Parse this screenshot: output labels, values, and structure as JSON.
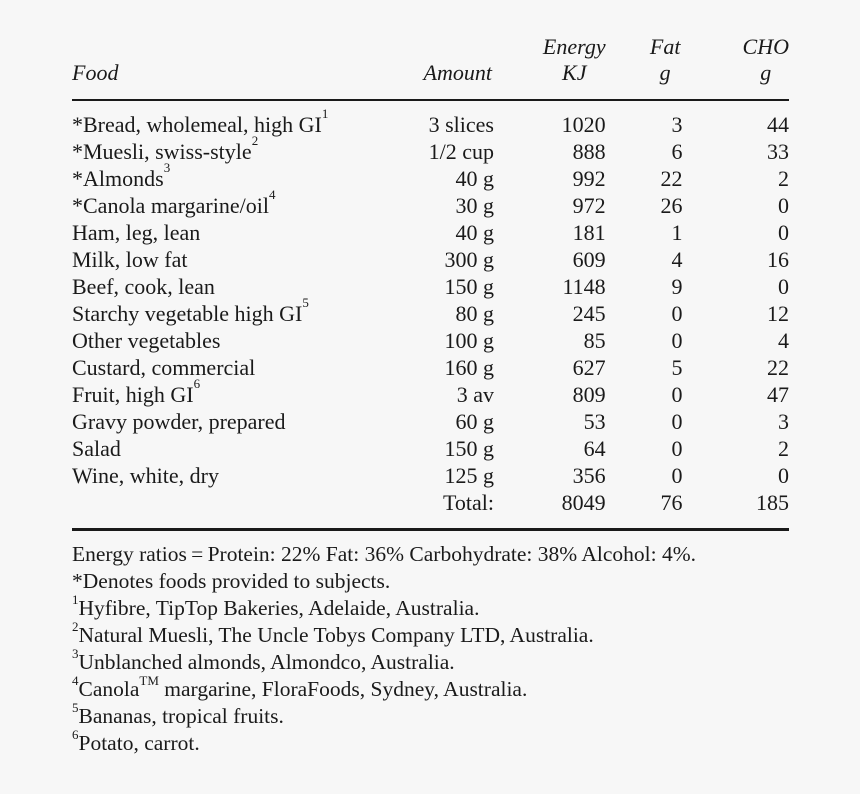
{
  "table": {
    "headers": {
      "food": "Food",
      "amount": "Amount",
      "energy_line1": "Energy",
      "energy_line2": "KJ",
      "fat_line1": "Fat",
      "fat_line2": "g",
      "cho_line1": "CHO",
      "cho_line2": "g"
    },
    "rows": [
      {
        "food": "*Bread, wholemeal, high GI",
        "note": "1",
        "amount": "3 slices",
        "energy": "1020",
        "fat": "3",
        "cho": "44"
      },
      {
        "food": "*Muesli, swiss-style",
        "note": "2",
        "amount": "1/2 cup",
        "energy": "888",
        "fat": "6",
        "cho": "33"
      },
      {
        "food": "*Almonds",
        "note": "3",
        "amount": "40 g",
        "energy": "992",
        "fat": "22",
        "cho": "2"
      },
      {
        "food": "*Canola margarine/oil",
        "note": "4",
        "amount": "30 g",
        "energy": "972",
        "fat": "26",
        "cho": "0"
      },
      {
        "food": "Ham, leg, lean",
        "note": "",
        "amount": "40 g",
        "energy": "181",
        "fat": "1",
        "cho": "0"
      },
      {
        "food": "Milk, low fat",
        "note": "",
        "amount": "300 g",
        "energy": "609",
        "fat": "4",
        "cho": "16"
      },
      {
        "food": "Beef, cook, lean",
        "note": "",
        "amount": "150 g",
        "energy": "1148",
        "fat": "9",
        "cho": "0"
      },
      {
        "food": "Starchy vegetable high GI",
        "note": "5",
        "amount": "80 g",
        "energy": "245",
        "fat": "0",
        "cho": "12"
      },
      {
        "food": "Other vegetables",
        "note": "",
        "amount": "100 g",
        "energy": "85",
        "fat": "0",
        "cho": "4"
      },
      {
        "food": "Custard, commercial",
        "note": "",
        "amount": "160 g",
        "energy": "627",
        "fat": "5",
        "cho": "22"
      },
      {
        "food": "Fruit, high GI",
        "note": "6",
        "amount": "3 av",
        "energy": "809",
        "fat": "0",
        "cho": "47"
      },
      {
        "food": "Gravy powder, prepared",
        "note": "",
        "amount": "60 g",
        "energy": "53",
        "fat": "0",
        "cho": "3"
      },
      {
        "food": "Salad",
        "note": "",
        "amount": "150 g",
        "energy": "64",
        "fat": "0",
        "cho": "2"
      },
      {
        "food": "Wine, white, dry",
        "note": "",
        "amount": "125 g",
        "energy": "356",
        "fat": "0",
        "cho": "0"
      }
    ],
    "total": {
      "label": "Total:",
      "energy": "8049",
      "fat": "76",
      "cho": "185"
    }
  },
  "notes": {
    "ratios": "Energy ratios = Protein: 22% Fat: 36% Carbohydrate: 38% Alcohol: 4%.",
    "denotes": "*Denotes foods provided to subjects.",
    "footnotes": [
      {
        "mark": "1",
        "text": "Hyfibre, TipTop Bakeries, Adelaide, Australia."
      },
      {
        "mark": "2",
        "text": "Natural Muesli, The Uncle Tobys Company LTD, Australia."
      },
      {
        "mark": "3",
        "text": "Unblanched almonds, Almondco, Australia."
      },
      {
        "mark": "4",
        "text_before": "Canola",
        "tm": "TM",
        "text": " margarine, FloraFoods, Sydney, Australia."
      },
      {
        "mark": "5",
        "text": "Bananas, tropical fruits."
      },
      {
        "mark": "6",
        "text": "Potato, carrot."
      }
    ]
  }
}
